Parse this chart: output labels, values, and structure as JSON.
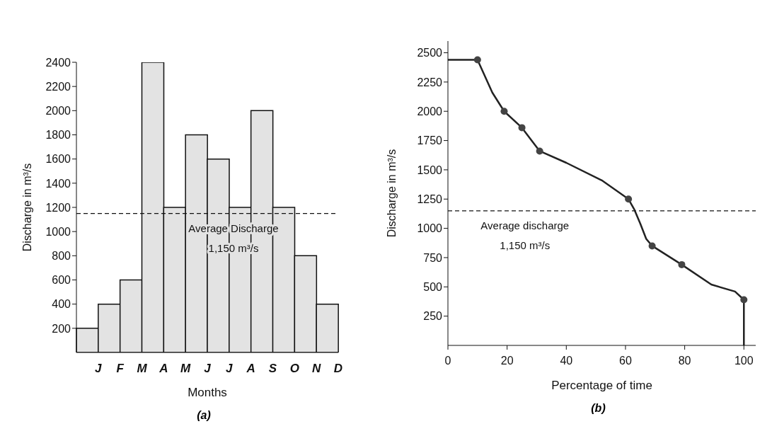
{
  "chart_data": [
    {
      "type": "bar",
      "title": "(a)",
      "xlabel": "Months",
      "ylabel": "Discharge in m³/s",
      "categories": [
        "J",
        "F",
        "M",
        "A",
        "M",
        "J",
        "J",
        "A",
        "S",
        "O",
        "N",
        "D"
      ],
      "values": [
        200,
        400,
        600,
        2400,
        1200,
        1800,
        1600,
        1200,
        2000,
        1200,
        800,
        400
      ],
      "color": "#e3e3e3",
      "ylim": [
        0,
        2400
      ],
      "yticks": [
        200,
        400,
        600,
        800,
        1000,
        1200,
        1400,
        1600,
        1800,
        2000,
        2200,
        2400
      ],
      "ref_lines": [
        {
          "axis": "y",
          "value": 1150,
          "label": "Average Discharge\n1,150 m³/s",
          "line_style": "dashed"
        }
      ]
    },
    {
      "type": "line",
      "title": "(b)",
      "xlabel": "Percentage of time",
      "ylabel": "Discharge in m³/s",
      "series": [
        {
          "type": "line",
          "marker": "none",
          "color": "#222222",
          "x": [
            0,
            10,
            15,
            19,
            25,
            31,
            40,
            52,
            61,
            63,
            65,
            67,
            69,
            79,
            89,
            97,
            100,
            100
          ],
          "values": [
            2440,
            2440,
            2160,
            2000,
            1860,
            1660,
            1560,
            1410,
            1250,
            1160,
            1040,
            910,
            850,
            690,
            520,
            460,
            390,
            0
          ]
        },
        {
          "type": "scatter",
          "marker": "circle",
          "color": "#444444",
          "x": [
            10,
            19,
            25,
            31,
            61,
            69,
            79,
            100
          ],
          "values": [
            2440,
            2000,
            1860,
            1660,
            1250,
            850,
            690,
            390
          ]
        }
      ],
      "xlim": [
        0,
        104
      ],
      "xticks": [
        0,
        20,
        40,
        60,
        80,
        100
      ],
      "ylim": [
        0,
        2600
      ],
      "yticks": [
        250,
        500,
        750,
        1000,
        1250,
        1500,
        1750,
        2000,
        2250,
        2500
      ],
      "ref_lines": [
        {
          "axis": "y",
          "value": 1150,
          "label": "Average discharge\n1,150 m³/s",
          "line_style": "dashed"
        }
      ]
    }
  ]
}
